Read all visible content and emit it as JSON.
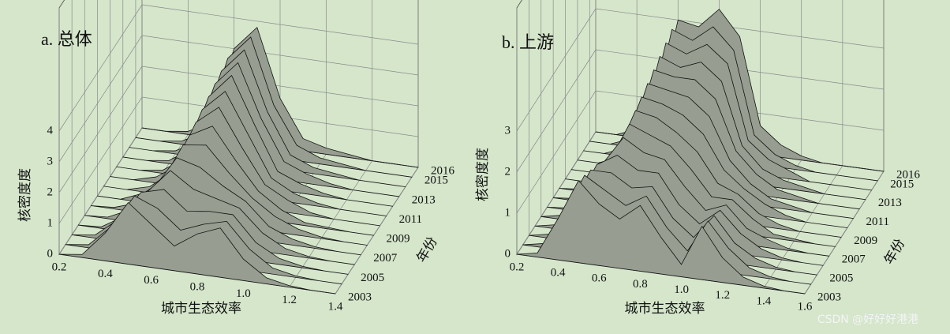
{
  "chart_data": [
    {
      "type": "surface",
      "title": "a. 总体",
      "x_label": "城市生态效率",
      "y_label": "年份",
      "z_label": "核密度度",
      "color": "#979d90",
      "x": [
        0.2,
        0.3,
        0.4,
        0.5,
        0.6,
        0.7,
        0.8,
        0.9,
        1.0,
        1.1,
        1.2,
        1.3,
        1.4
      ],
      "years": [
        2003,
        2004,
        2005,
        2006,
        2007,
        2008,
        2009,
        2010,
        2011,
        2012,
        2013,
        2014,
        2015,
        2016
      ],
      "z": [
        [
          0,
          0.1,
          0.9,
          2.0,
          1.4,
          0.8,
          1.3,
          1.6,
          0.7,
          0.2,
          0.05,
          0,
          0
        ],
        [
          0,
          0.1,
          0.8,
          1.9,
          1.6,
          1.0,
          1.3,
          1.5,
          0.7,
          0.2,
          0.05,
          0,
          0
        ],
        [
          0,
          0.1,
          0.7,
          1.7,
          1.9,
          1.3,
          1.4,
          1.4,
          0.6,
          0.2,
          0.05,
          0,
          0
        ],
        [
          0,
          0.05,
          0.5,
          1.4,
          2.2,
          1.7,
          1.5,
          1.3,
          0.6,
          0.2,
          0.05,
          0,
          0
        ],
        [
          0,
          0.05,
          0.4,
          1.2,
          2.3,
          2.1,
          1.6,
          1.2,
          0.5,
          0.2,
          0.05,
          0,
          0
        ],
        [
          0,
          0.05,
          0.3,
          1.0,
          2.4,
          2.5,
          1.7,
          1.0,
          0.5,
          0.2,
          0.05,
          0,
          0
        ],
        [
          0,
          0,
          0.3,
          0.9,
          2.4,
          2.8,
          1.8,
          0.9,
          0.4,
          0.1,
          0.05,
          0,
          0
        ],
        [
          0,
          0,
          0.2,
          0.8,
          2.5,
          3.1,
          1.9,
          0.8,
          0.4,
          0.1,
          0,
          0,
          0
        ],
        [
          0,
          0,
          0.2,
          0.7,
          2.6,
          3.3,
          2.0,
          0.7,
          0.3,
          0.1,
          0,
          0,
          0
        ],
        [
          0,
          0,
          0.1,
          0.6,
          2.7,
          3.5,
          2.0,
          0.6,
          0.3,
          0.1,
          0,
          0,
          0
        ],
        [
          0,
          0,
          0.1,
          0.6,
          2.8,
          3.6,
          1.9,
          0.6,
          0.3,
          0.1,
          0,
          0,
          0
        ],
        [
          0,
          0,
          0.1,
          0.5,
          2.9,
          3.7,
          1.8,
          0.5,
          0.2,
          0.1,
          0,
          0,
          0
        ],
        [
          0,
          0,
          0.1,
          0.5,
          3.0,
          3.8,
          1.7,
          0.5,
          0.2,
          0.1,
          0,
          0,
          0
        ],
        [
          0,
          0,
          0.1,
          0.5,
          3.0,
          3.8,
          1.6,
          0.4,
          0.2,
          0.1,
          0,
          0,
          0
        ]
      ],
      "xlim": [
        0.2,
        1.4
      ],
      "xticks": [
        0.2,
        0.4,
        0.6,
        0.8,
        {
          "value": 1,
          "label": "1.0"
        },
        1.2,
        1.4
      ],
      "ylim": [
        2003,
        2016
      ],
      "yticks": [
        2003,
        2005,
        2007,
        2009,
        2011,
        2013,
        2015,
        2016
      ],
      "zlim": [
        0,
        8
      ],
      "zticks": [
        0,
        1,
        2,
        3,
        4
      ]
    },
    {
      "type": "surface",
      "title": "b. 上游",
      "x_label": "城市生态效率",
      "y_label": "年份",
      "z_label": "核密度度",
      "color": "#979d90",
      "x": [
        0.2,
        0.3,
        0.4,
        0.5,
        0.6,
        0.7,
        0.8,
        0.9,
        1.0,
        1.1,
        1.2,
        1.3,
        1.4,
        1.5,
        1.6
      ],
      "years": [
        2003,
        2004,
        2005,
        2006,
        2007,
        2008,
        2009,
        2010,
        2011,
        2012,
        2013,
        2014,
        2015,
        2016
      ],
      "z": [
        [
          0,
          0.1,
          1.0,
          2.0,
          1.5,
          1.2,
          1.6,
          0.9,
          0.3,
          1.3,
          0.6,
          0.2,
          0.05,
          0,
          0
        ],
        [
          0,
          0.1,
          0.9,
          1.9,
          1.6,
          1.3,
          1.6,
          0.9,
          0.4,
          1.2,
          0.6,
          0.2,
          0.05,
          0,
          0
        ],
        [
          0,
          0.1,
          0.8,
          1.8,
          1.8,
          1.5,
          1.6,
          0.9,
          0.5,
          1.1,
          0.5,
          0.2,
          0.05,
          0,
          0
        ],
        [
          0,
          0.1,
          0.7,
          1.7,
          2.0,
          1.7,
          1.7,
          1.0,
          0.6,
          1.0,
          0.5,
          0.2,
          0.05,
          0,
          0
        ],
        [
          0,
          0.1,
          0.6,
          1.5,
          2.2,
          1.9,
          1.8,
          1.2,
          0.7,
          0.9,
          0.4,
          0.2,
          0.05,
          0,
          0
        ],
        [
          0,
          0.05,
          0.5,
          1.3,
          2.3,
          2.1,
          1.9,
          1.4,
          0.8,
          0.8,
          0.4,
          0.1,
          0.05,
          0,
          0
        ],
        [
          0,
          0.05,
          0.4,
          1.2,
          2.4,
          2.3,
          2.0,
          1.6,
          0.9,
          0.7,
          0.3,
          0.1,
          0,
          0,
          0
        ],
        [
          0,
          0.05,
          0.4,
          1.1,
          2.5,
          2.4,
          2.2,
          1.8,
          1.0,
          0.6,
          0.3,
          0.1,
          0,
          0,
          0
        ],
        [
          0,
          0,
          0.3,
          1.0,
          2.6,
          2.5,
          2.4,
          2.0,
          1.0,
          0.5,
          0.2,
          0.1,
          0,
          0,
          0
        ],
        [
          0,
          0,
          0.3,
          0.9,
          2.7,
          2.6,
          2.6,
          2.2,
          1.0,
          0.5,
          0.2,
          0.1,
          0,
          0,
          0
        ],
        [
          0,
          0,
          0.2,
          0.8,
          2.8,
          2.6,
          2.8,
          2.4,
          0.9,
          0.4,
          0.2,
          0.1,
          0,
          0,
          0
        ],
        [
          0,
          0,
          0.2,
          0.7,
          2.9,
          2.7,
          3.0,
          2.6,
          0.8,
          0.4,
          0.2,
          0,
          0,
          0,
          0
        ],
        [
          0,
          0,
          0.2,
          0.7,
          3.0,
          2.8,
          3.2,
          2.7,
          0.7,
          0.3,
          0.1,
          0,
          0,
          0,
          0
        ],
        [
          0,
          0,
          0.2,
          0.7,
          3.0,
          2.9,
          3.4,
          2.8,
          0.7,
          0.3,
          0.1,
          0,
          0,
          0,
          0
        ]
      ],
      "xlim": [
        0.2,
        1.6
      ],
      "xticks": [
        0.2,
        0.4,
        0.6,
        0.8,
        {
          "value": 1,
          "label": "1.0"
        },
        1.2,
        1.4,
        1.6
      ],
      "ylim": [
        2003,
        2016
      ],
      "yticks": [
        2003,
        2005,
        2007,
        2009,
        2011,
        2013,
        2015,
        2016
      ],
      "zlim": [
        0,
        6
      ],
      "zticks": [
        0,
        1,
        2,
        3
      ]
    }
  ],
  "watermark": "CSDN @好好好港港"
}
